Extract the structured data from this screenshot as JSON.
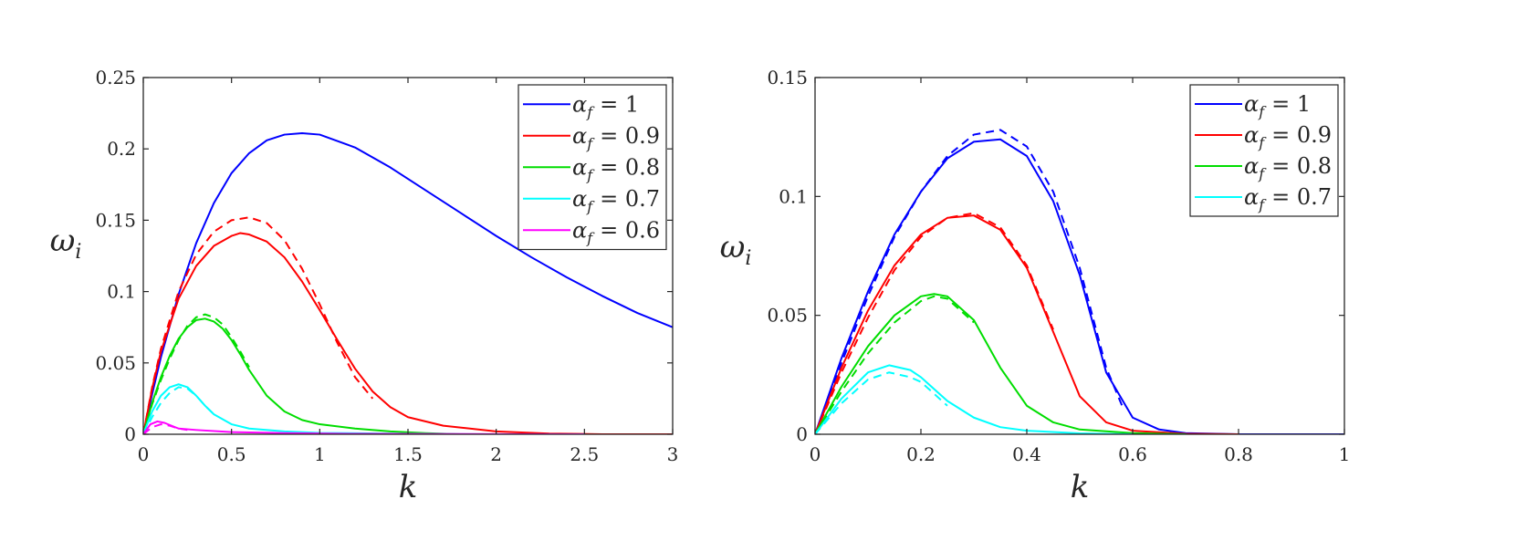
{
  "chart_data": [
    {
      "type": "line",
      "xlabel": "k",
      "ylabel": "ω_i",
      "ylabel_main": "ω",
      "ylabel_sub": "i",
      "xlim": [
        0,
        3
      ],
      "ylim": [
        0,
        0.25
      ],
      "xticks": [
        0,
        0.5,
        1,
        1.5,
        2,
        2.5,
        3
      ],
      "xtick_labels": [
        "0",
        "0.5",
        "1",
        "1.5",
        "2",
        "2.5",
        "3"
      ],
      "yticks": [
        0,
        0.05,
        0.1,
        0.15,
        0.2,
        0.25
      ],
      "ytick_labels": [
        "0",
        "0.05",
        "0.1",
        "0.15",
        "0.2",
        "0.25"
      ],
      "grid": false,
      "legend_position": "top-right",
      "series": [
        {
          "name": "α_f = 1",
          "legend_main": "α",
          "legend_sub": "f",
          "legend_value": "= 1",
          "color": "#0000ff",
          "solid": {
            "x": [
              0,
              0.05,
              0.1,
              0.2,
              0.3,
              0.4,
              0.5,
              0.6,
              0.7,
              0.8,
              0.9,
              1.0,
              1.2,
              1.4,
              1.6,
              1.8,
              2.0,
              2.2,
              2.4,
              2.6,
              2.8,
              3.0
            ],
            "y": [
              0,
              0.028,
              0.054,
              0.098,
              0.134,
              0.162,
              0.183,
              0.197,
              0.206,
              0.21,
              0.211,
              0.21,
              0.201,
              0.187,
              0.171,
              0.155,
              0.139,
              0.124,
              0.11,
              0.097,
              0.085,
              0.075
            ]
          }
        },
        {
          "name": "α_f = 0.9",
          "legend_main": "α",
          "legend_sub": "f",
          "legend_value": "= 0.9",
          "color": "#ff0000",
          "solid": {
            "x": [
              0,
              0.05,
              0.1,
              0.2,
              0.3,
              0.4,
              0.5,
              0.55,
              0.6,
              0.7,
              0.8,
              0.9,
              1.0,
              1.1,
              1.2,
              1.3,
              1.4,
              1.5,
              1.7,
              2.0,
              2.3,
              2.6,
              3.0
            ],
            "y": [
              0,
              0.032,
              0.058,
              0.095,
              0.118,
              0.132,
              0.139,
              0.141,
              0.14,
              0.135,
              0.124,
              0.107,
              0.087,
              0.066,
              0.046,
              0.03,
              0.019,
              0.012,
              0.006,
              0.002,
              0.0005,
              0,
              0
            ]
          },
          "dashed": {
            "x": [
              0,
              0.05,
              0.1,
              0.2,
              0.3,
              0.4,
              0.5,
              0.6,
              0.7,
              0.8,
              0.9,
              1.0,
              1.1,
              1.15,
              1.2,
              1.3
            ],
            "y": [
              0,
              0.033,
              0.06,
              0.1,
              0.126,
              0.142,
              0.15,
              0.152,
              0.148,
              0.136,
              0.116,
              0.091,
              0.064,
              0.052,
              0.04,
              0.025
            ]
          }
        },
        {
          "name": "α_f = 0.8",
          "legend_main": "α",
          "legend_sub": "f",
          "legend_value": "= 0.8",
          "color": "#00dd00",
          "solid": {
            "x": [
              0,
              0.05,
              0.1,
              0.15,
              0.2,
              0.25,
              0.3,
              0.35,
              0.4,
              0.45,
              0.5,
              0.55,
              0.6,
              0.7,
              0.8,
              0.9,
              1.0,
              1.2,
              1.4,
              1.6,
              1.8
            ],
            "y": [
              0,
              0.022,
              0.04,
              0.055,
              0.067,
              0.075,
              0.08,
              0.081,
              0.079,
              0.074,
              0.066,
              0.056,
              0.045,
              0.027,
              0.016,
              0.01,
              0.007,
              0.004,
              0.002,
              0.0008,
              0
            ]
          },
          "dashed": {
            "x": [
              0,
              0.05,
              0.1,
              0.15,
              0.2,
              0.25,
              0.3,
              0.35,
              0.4,
              0.45,
              0.5,
              0.55,
              0.6
            ],
            "y": [
              0,
              0.021,
              0.038,
              0.053,
              0.066,
              0.076,
              0.082,
              0.084,
              0.082,
              0.077,
              0.068,
              0.058,
              0.047
            ]
          }
        },
        {
          "name": "α_f = 0.7",
          "legend_main": "α",
          "legend_sub": "f",
          "legend_value": "= 0.7",
          "color": "#00ffff",
          "solid": {
            "x": [
              0,
              0.05,
              0.1,
              0.15,
              0.2,
              0.25,
              0.3,
              0.35,
              0.4,
              0.5,
              0.6,
              0.8,
              1.0,
              1.5,
              2.0
            ],
            "y": [
              0,
              0.016,
              0.027,
              0.033,
              0.035,
              0.033,
              0.027,
              0.02,
              0.014,
              0.007,
              0.004,
              0.002,
              0.001,
              0.0003,
              0
            ]
          },
          "dashed": {
            "x": [
              0,
              0.05,
              0.1,
              0.15,
              0.2,
              0.25,
              0.3,
              0.35,
              0.4
            ],
            "y": [
              0,
              0.012,
              0.022,
              0.029,
              0.033,
              0.032,
              0.027,
              0.02,
              0.014
            ]
          }
        },
        {
          "name": "α_f = 0.6",
          "legend_main": "α",
          "legend_sub": "f",
          "legend_value": "= 0.6",
          "color": "#ff00ff",
          "solid": {
            "x": [
              0,
              0.04,
              0.08,
              0.12,
              0.16,
              0.2,
              0.3,
              0.5,
              0.8,
              1.2,
              2.0,
              2.5
            ],
            "y": [
              0,
              0.007,
              0.009,
              0.008,
              0.006,
              0.004,
              0.003,
              0.0015,
              0.0008,
              0.0003,
              0.0001,
              0
            ]
          },
          "dashed": {
            "x": [
              0,
              0.05,
              0.1,
              0.15,
              0.2,
              0.25
            ],
            "y": [
              0,
              0.005,
              0.007,
              0.006,
              0.004,
              0.003
            ]
          }
        }
      ]
    },
    {
      "type": "line",
      "xlabel": "k",
      "ylabel": "ω_i",
      "ylabel_main": "ω",
      "ylabel_sub": "i",
      "xlim": [
        0,
        1
      ],
      "ylim": [
        0,
        0.15
      ],
      "xticks": [
        0,
        0.2,
        0.4,
        0.6,
        0.8,
        1
      ],
      "xtick_labels": [
        "0",
        "0.2",
        "0.4",
        "0.6",
        "0.8",
        "1"
      ],
      "yticks": [
        0,
        0.05,
        0.1,
        0.15
      ],
      "ytick_labels": [
        "0",
        "0.05",
        "0.1",
        "0.15"
      ],
      "grid": false,
      "legend_position": "top-right",
      "series": [
        {
          "name": "α_f = 1",
          "legend_main": "α",
          "legend_sub": "f",
          "legend_value": "= 1",
          "color": "#0000ff",
          "solid": {
            "x": [
              0,
              0.05,
              0.1,
              0.15,
              0.2,
              0.25,
              0.3,
              0.35,
              0.4,
              0.45,
              0.5,
              0.55,
              0.6,
              0.65,
              0.7,
              0.8,
              1.0
            ],
            "y": [
              0,
              0.032,
              0.06,
              0.084,
              0.102,
              0.116,
              0.123,
              0.124,
              0.117,
              0.098,
              0.067,
              0.026,
              0.007,
              0.002,
              0.0005,
              0,
              0
            ]
          },
          "dashed": {
            "x": [
              0,
              0.05,
              0.1,
              0.15,
              0.2,
              0.25,
              0.3,
              0.35,
              0.4,
              0.45,
              0.5,
              0.55,
              0.58
            ],
            "y": [
              0,
              0.03,
              0.058,
              0.083,
              0.102,
              0.117,
              0.126,
              0.128,
              0.121,
              0.102,
              0.07,
              0.028,
              0.012
            ]
          }
        },
        {
          "name": "α_f = 0.9",
          "legend_main": "α",
          "legend_sub": "f",
          "legend_value": "= 0.9",
          "color": "#ff0000",
          "solid": {
            "x": [
              0,
              0.05,
              0.1,
              0.15,
              0.2,
              0.25,
              0.3,
              0.35,
              0.4,
              0.45,
              0.5,
              0.55,
              0.6,
              0.7,
              0.8
            ],
            "y": [
              0,
              0.028,
              0.052,
              0.071,
              0.084,
              0.091,
              0.092,
              0.086,
              0.07,
              0.043,
              0.016,
              0.005,
              0.0015,
              0.0002,
              0
            ]
          },
          "dashed": {
            "x": [
              0,
              0.05,
              0.1,
              0.15,
              0.2,
              0.25,
              0.3,
              0.35,
              0.4,
              0.45
            ],
            "y": [
              0,
              0.026,
              0.049,
              0.069,
              0.083,
              0.091,
              0.093,
              0.087,
              0.071,
              0.044
            ]
          }
        },
        {
          "name": "α_f = 0.8",
          "legend_main": "α",
          "legend_sub": "f",
          "legend_value": "= 0.8",
          "color": "#00dd00",
          "solid": {
            "x": [
              0,
              0.05,
              0.1,
              0.15,
              0.2,
              0.225,
              0.25,
              0.3,
              0.35,
              0.4,
              0.45,
              0.5,
              0.6,
              0.7
            ],
            "y": [
              0,
              0.02,
              0.037,
              0.05,
              0.058,
              0.059,
              0.058,
              0.048,
              0.028,
              0.012,
              0.005,
              0.002,
              0.0005,
              0
            ]
          },
          "dashed": {
            "x": [
              0,
              0.05,
              0.1,
              0.15,
              0.2,
              0.225,
              0.25,
              0.3
            ],
            "y": [
              0,
              0.018,
              0.034,
              0.047,
              0.056,
              0.058,
              0.057,
              0.047
            ]
          }
        },
        {
          "name": "α_f = 0.7",
          "legend_main": "α",
          "legend_sub": "f",
          "legend_value": "= 0.7",
          "color": "#00ffff",
          "solid": {
            "x": [
              0,
              0.05,
              0.1,
              0.14,
              0.18,
              0.2,
              0.25,
              0.3,
              0.35,
              0.4,
              0.5,
              0.6
            ],
            "y": [
              0,
              0.015,
              0.026,
              0.029,
              0.027,
              0.024,
              0.014,
              0.007,
              0.003,
              0.0015,
              0.0004,
              0
            ]
          },
          "dashed": {
            "x": [
              0,
              0.05,
              0.1,
              0.14,
              0.18,
              0.2,
              0.25
            ],
            "y": [
              0,
              0.013,
              0.023,
              0.026,
              0.024,
              0.022,
              0.012
            ]
          }
        }
      ]
    }
  ]
}
